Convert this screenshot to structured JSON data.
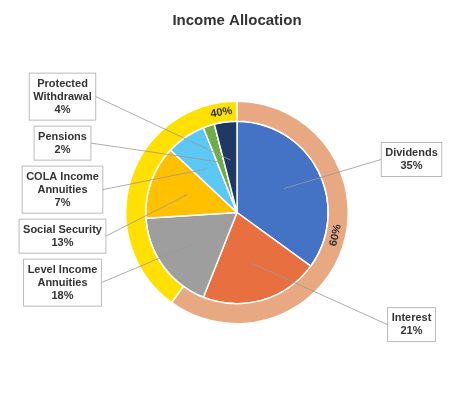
{
  "chart_data": {
    "type": "pie",
    "title": "Income Allocation",
    "series": [
      {
        "categories": [
          "60%",
          "40%"
        ],
        "values": [
          60,
          40
        ],
        "colors": [
          "#E8A882",
          "#FFE000"
        ]
      },
      {
        "categories": [
          "Dividends\n35%",
          "Interest\n21%",
          "Level Income\nAnnuities\n18%",
          "Social Security\n13%",
          "COLA Income\nAnnuities\n7%",
          "Pensions\n2%",
          "Protected\nWithdrawal\n4%"
        ],
        "values": [
          35,
          21,
          18,
          13,
          7,
          2,
          4
        ],
        "colors": [
          "#4472C4",
          "#E87040",
          "#9E9E9E",
          "#FFC000",
          "#5BC8F5",
          "#70AD47",
          "#1F3864"
        ]
      }
    ]
  }
}
